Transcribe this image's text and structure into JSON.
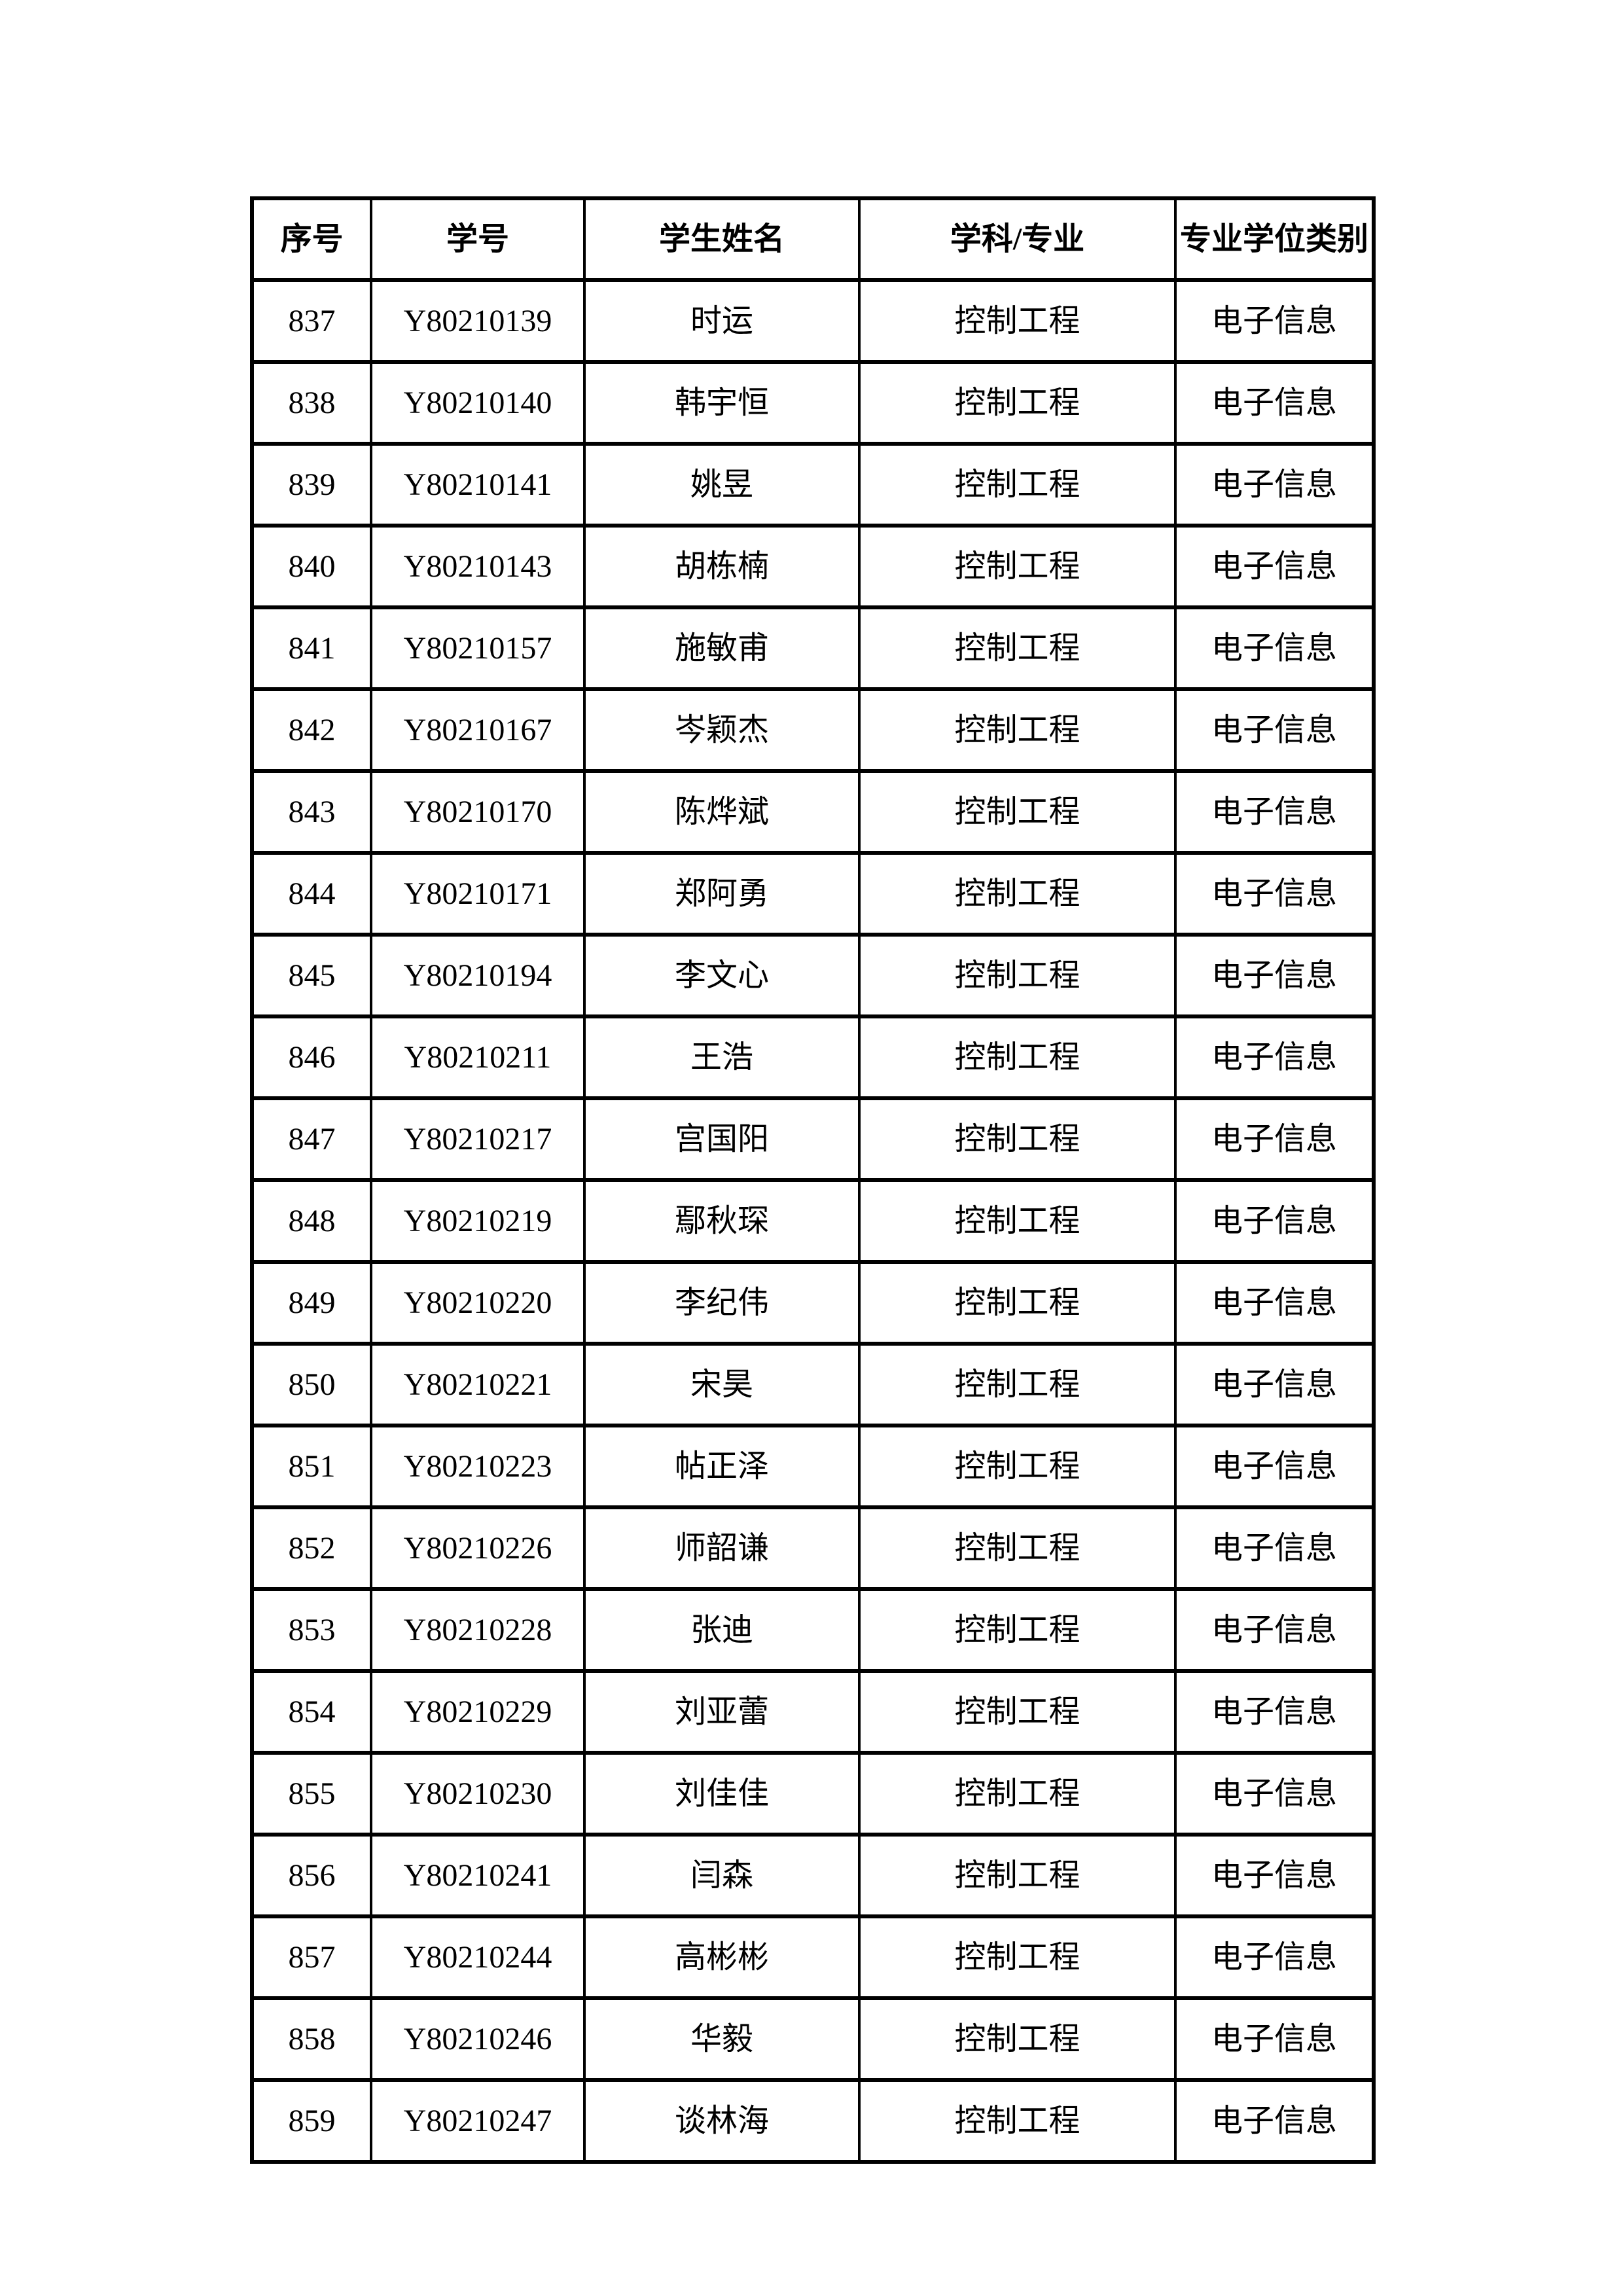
{
  "table": {
    "headers": [
      "序号",
      "学号",
      "学生姓名",
      "学科/专业",
      "专业学位类别"
    ],
    "column_keys": [
      "no",
      "id",
      "name",
      "major",
      "category"
    ],
    "column_names": [
      "cell-serial-number",
      "cell-student-id",
      "cell-student-name",
      "cell-major",
      "cell-degree-category"
    ],
    "rows": [
      {
        "no": "837",
        "id": "Y80210139",
        "name": "时运",
        "major": "控制工程",
        "category": "电子信息"
      },
      {
        "no": "838",
        "id": "Y80210140",
        "name": "韩宇恒",
        "major": "控制工程",
        "category": "电子信息"
      },
      {
        "no": "839",
        "id": "Y80210141",
        "name": "姚昱",
        "major": "控制工程",
        "category": "电子信息"
      },
      {
        "no": "840",
        "id": "Y80210143",
        "name": "胡栋楠",
        "major": "控制工程",
        "category": "电子信息"
      },
      {
        "no": "841",
        "id": "Y80210157",
        "name": "施敏甫",
        "major": "控制工程",
        "category": "电子信息"
      },
      {
        "no": "842",
        "id": "Y80210167",
        "name": "岑颖杰",
        "major": "控制工程",
        "category": "电子信息"
      },
      {
        "no": "843",
        "id": "Y80210170",
        "name": "陈烨斌",
        "major": "控制工程",
        "category": "电子信息"
      },
      {
        "no": "844",
        "id": "Y80210171",
        "name": "郑阿勇",
        "major": "控制工程",
        "category": "电子信息"
      },
      {
        "no": "845",
        "id": "Y80210194",
        "name": "李文心",
        "major": "控制工程",
        "category": "电子信息"
      },
      {
        "no": "846",
        "id": "Y80210211",
        "name": "王浩",
        "major": "控制工程",
        "category": "电子信息"
      },
      {
        "no": "847",
        "id": "Y80210217",
        "name": "宫国阳",
        "major": "控制工程",
        "category": "电子信息"
      },
      {
        "no": "848",
        "id": "Y80210219",
        "name": "鄢秋琛",
        "major": "控制工程",
        "category": "电子信息"
      },
      {
        "no": "849",
        "id": "Y80210220",
        "name": "李纪伟",
        "major": "控制工程",
        "category": "电子信息"
      },
      {
        "no": "850",
        "id": "Y80210221",
        "name": "宋昊",
        "major": "控制工程",
        "category": "电子信息"
      },
      {
        "no": "851",
        "id": "Y80210223",
        "name": "帖正泽",
        "major": "控制工程",
        "category": "电子信息"
      },
      {
        "no": "852",
        "id": "Y80210226",
        "name": "师韶谦",
        "major": "控制工程",
        "category": "电子信息"
      },
      {
        "no": "853",
        "id": "Y80210228",
        "name": "张迪",
        "major": "控制工程",
        "category": "电子信息"
      },
      {
        "no": "854",
        "id": "Y80210229",
        "name": "刘亚蕾",
        "major": "控制工程",
        "category": "电子信息"
      },
      {
        "no": "855",
        "id": "Y80210230",
        "name": "刘佳佳",
        "major": "控制工程",
        "category": "电子信息"
      },
      {
        "no": "856",
        "id": "Y80210241",
        "name": "闫森",
        "major": "控制工程",
        "category": "电子信息"
      },
      {
        "no": "857",
        "id": "Y80210244",
        "name": "高彬彬",
        "major": "控制工程",
        "category": "电子信息"
      },
      {
        "no": "858",
        "id": "Y80210246",
        "name": "华毅",
        "major": "控制工程",
        "category": "电子信息"
      },
      {
        "no": "859",
        "id": "Y80210247",
        "name": "谈林海",
        "major": "控制工程",
        "category": "电子信息"
      }
    ]
  }
}
